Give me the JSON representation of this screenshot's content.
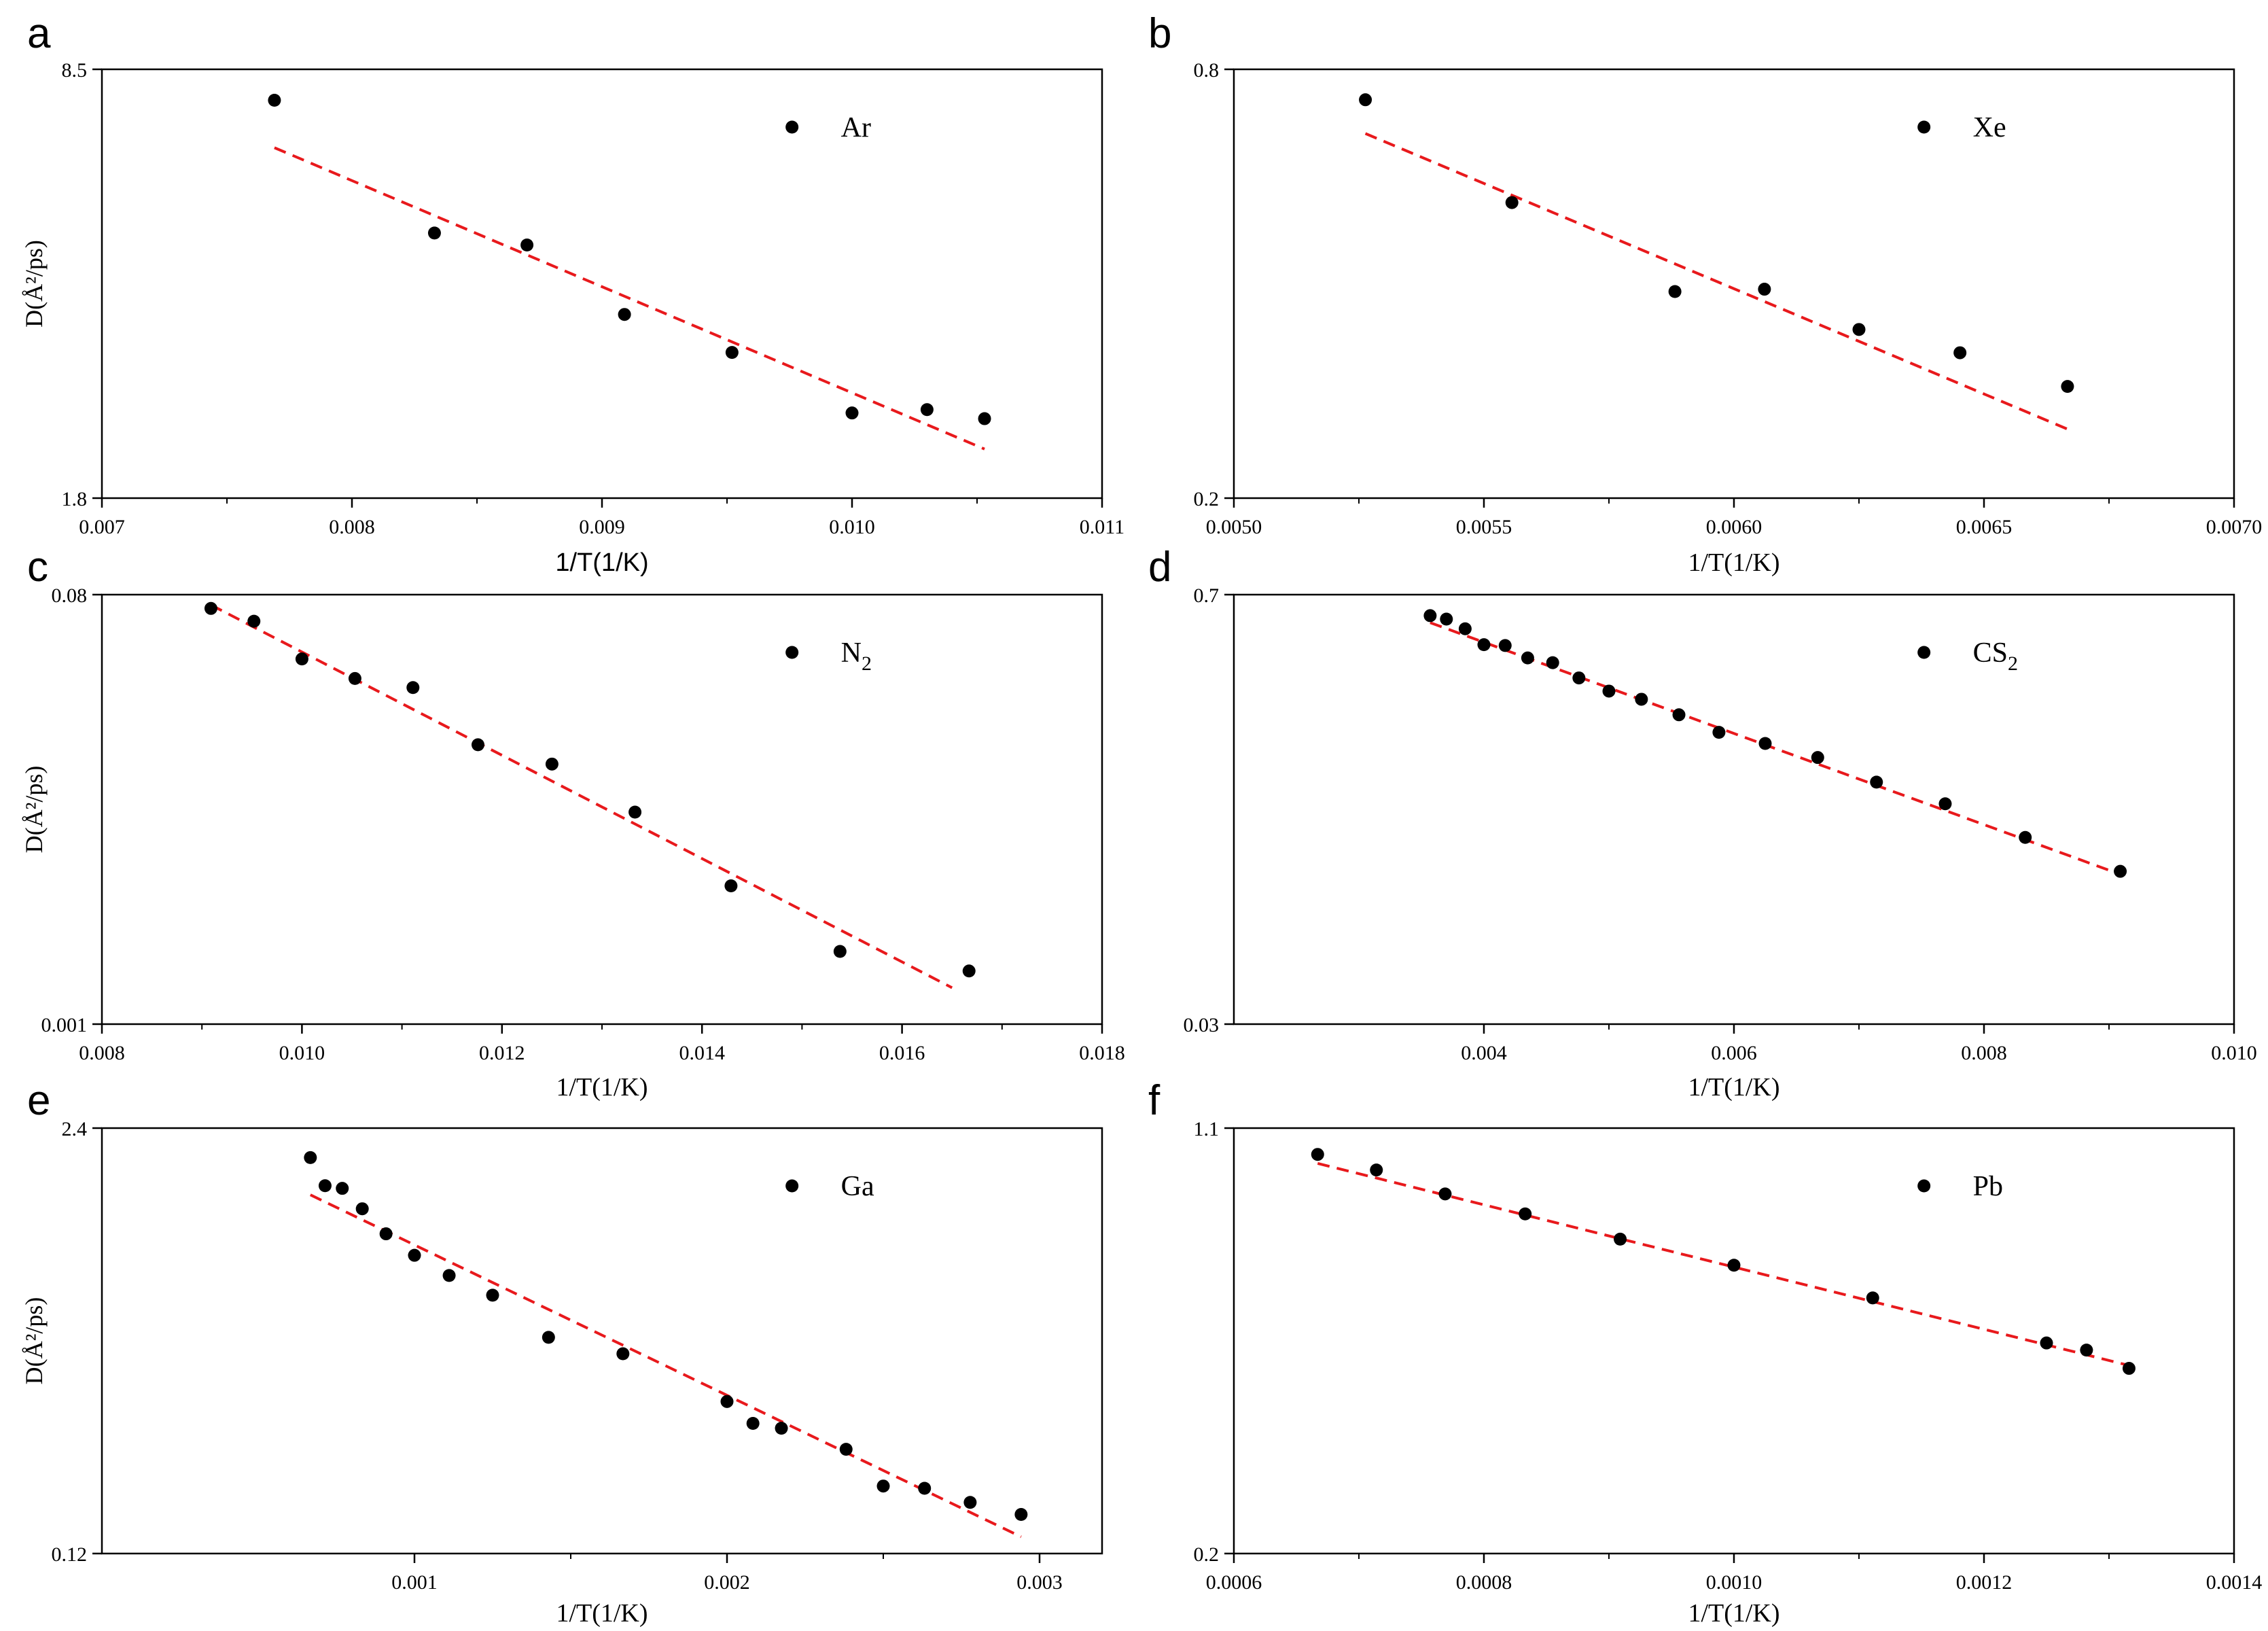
{
  "chart_data": [
    {
      "panel": "a",
      "type": "scatter",
      "yscale": "log",
      "series": [
        {
          "name": "Ar",
          "x": [
            0.00769,
            0.00833,
            0.0087,
            0.00909,
            0.00952,
            0.01,
            0.0103,
            0.01053
          ],
          "y": [
            7.6,
            4.7,
            4.5,
            3.5,
            3.05,
            2.45,
            2.48,
            2.4
          ]
        }
      ],
      "fit": {
        "x": [
          0.00769,
          0.01053
        ],
        "y": [
          6.4,
          2.15
        ]
      },
      "xlim": [
        0.007,
        0.011
      ],
      "ylim": [
        1.8,
        8.5
      ],
      "xticks": [
        "0.007",
        "0.008",
        "0.009",
        "0.010",
        "0.011"
      ],
      "xtick_values": [
        0.007,
        0.008,
        0.009,
        0.01,
        0.011
      ],
      "yticks": [
        "8.5",
        "1.8"
      ],
      "ytick_values": [
        8.5,
        1.8
      ],
      "xlabel": "1/T(1/K)",
      "ylabel": "D(Å²/ps)",
      "legend": "Ar"
    },
    {
      "panel": "b",
      "type": "scatter",
      "yscale": "log",
      "series": [
        {
          "name": "Xe",
          "x": [
            0.005263,
            0.005556,
            0.005882,
            0.006061,
            0.00625,
            0.006452,
            0.006667
          ],
          "y": [
            0.725,
            0.52,
            0.39,
            0.393,
            0.345,
            0.32,
            0.287
          ]
        }
      ],
      "fit": {
        "x": [
          0.005263,
          0.006667
        ],
        "y": [
          0.65,
          0.25
        ]
      },
      "xlim": [
        0.005,
        0.007
      ],
      "ylim": [
        0.2,
        0.8
      ],
      "xticks": [
        "0.0050",
        "0.0055",
        "0.0060",
        "0.0065",
        "0.0070"
      ],
      "xtick_values": [
        0.005,
        0.0055,
        0.006,
        0.0065,
        0.007
      ],
      "yticks": [
        "0.8",
        "0.2"
      ],
      "ytick_values": [
        0.8,
        0.2
      ],
      "xlabel": "1/T(1/K)",
      "ylabel": "",
      "legend": "Xe"
    },
    {
      "panel": "c",
      "type": "scatter",
      "yscale": "log",
      "series": [
        {
          "name": "N2",
          "x": [
            0.00909,
            0.00952,
            0.01,
            0.01053,
            0.01111,
            0.01176,
            0.0125,
            0.01333,
            0.01429,
            0.01538,
            0.01667
          ],
          "y": [
            0.0695,
            0.061,
            0.0415,
            0.034,
            0.031,
            0.0173,
            0.0142,
            0.0087,
            0.0041,
            0.0021,
            0.00172
          ]
        }
      ],
      "fit": {
        "x": [
          0.00909,
          0.0165
        ],
        "y": [
          0.072,
          0.00145
        ]
      },
      "xlim": [
        0.008,
        0.018
      ],
      "ylim": [
        0.001,
        0.08
      ],
      "xticks": [
        "0.008",
        "0.010",
        "0.012",
        "0.014",
        "0.016",
        "0.018"
      ],
      "xtick_values": [
        0.008,
        0.01,
        0.012,
        0.014,
        0.016,
        0.018
      ],
      "yticks": [
        "0.08",
        "0.001"
      ],
      "ytick_values": [
        0.08,
        0.001
      ],
      "xlabel": "1/T(1/K)",
      "ylabel": "D(Å²/ps)",
      "legend": "N2",
      "legend_sub": "2"
    },
    {
      "panel": "d",
      "type": "scatter",
      "yscale": "log",
      "series": [
        {
          "name": "CS2",
          "x": [
            0.00357,
            0.0037,
            0.00385,
            0.004,
            0.00417,
            0.00435,
            0.00455,
            0.00476,
            0.005,
            0.00526,
            0.00556,
            0.00588,
            0.00625,
            0.00667,
            0.00714,
            0.00769,
            0.00833,
            0.00909
          ],
          "y": [
            0.6,
            0.585,
            0.545,
            0.485,
            0.482,
            0.44,
            0.425,
            0.38,
            0.345,
            0.325,
            0.29,
            0.255,
            0.235,
            0.212,
            0.177,
            0.151,
            0.118,
            0.092
          ]
        }
      ],
      "fit": {
        "x": [
          0.00357,
          0.00909
        ],
        "y": [
          0.57,
          0.09
        ]
      },
      "xlim": [
        0.002,
        0.01
      ],
      "ylim": [
        0.03,
        0.7
      ],
      "xticks": [
        "0.004",
        "0.006",
        "0.008",
        "0.010"
      ],
      "xtick_values": [
        0.004,
        0.006,
        0.008,
        0.01
      ],
      "yticks": [
        "0.7",
        "0.03"
      ],
      "ytick_values": [
        0.7,
        0.03
      ],
      "xlabel": "1/T(1/K)",
      "ylabel": "",
      "legend": "CS2",
      "legend_sub": "2"
    },
    {
      "panel": "e",
      "type": "scatter",
      "yscale": "log",
      "series": [
        {
          "name": "Ga",
          "x": [
            0.000667,
            0.000714,
            0.000769,
            0.000833,
            0.000909,
            0.001,
            0.001111,
            0.00125,
            0.001429,
            0.001667,
            0.002,
            0.002083,
            0.002174,
            0.002381,
            0.0025,
            0.002632,
            0.002778,
            0.002941
          ],
          "y": [
            1.95,
            1.6,
            1.57,
            1.36,
            1.14,
            0.98,
            0.85,
            0.74,
            0.55,
            0.49,
            0.35,
            0.3,
            0.29,
            0.25,
            0.193,
            0.19,
            0.172,
            0.158
          ]
        }
      ],
      "fit": {
        "x": [
          0.000667,
          0.002941
        ],
        "y": [
          1.5,
          0.135
        ]
      },
      "xlim": [
        0.0,
        0.0032
      ],
      "ylim": [
        0.12,
        2.4
      ],
      "xticks": [
        "0.001",
        "0.002",
        "0.003"
      ],
      "xtick_values": [
        0.001,
        0.002,
        0.003
      ],
      "yticks": [
        "2.4",
        "0.12"
      ],
      "ytick_values": [
        2.4,
        0.12
      ],
      "xlabel": "1/T(1/K)",
      "ylabel": "D(Å²/ps)",
      "legend": "Ga"
    },
    {
      "panel": "f",
      "type": "scatter",
      "yscale": "log",
      "series": [
        {
          "name": "Pb",
          "x": [
            0.000667,
            0.000714,
            0.000769,
            0.000833,
            0.000909,
            0.001,
            0.001111,
            0.00125,
            0.001282,
            0.001316
          ],
          "y": [
            0.99,
            0.93,
            0.845,
            0.78,
            0.705,
            0.635,
            0.557,
            0.465,
            0.452,
            0.42
          ]
        }
      ],
      "fit": {
        "x": [
          0.000667,
          0.001316
        ],
        "y": [
          0.955,
          0.425
        ]
      },
      "xlim": [
        0.0006,
        0.0014
      ],
      "ylim": [
        0.2,
        1.1
      ],
      "xticks": [
        "0.0006",
        "0.0008",
        "0.0010",
        "0.0012",
        "0.0014"
      ],
      "xtick_values": [
        0.0006,
        0.0008,
        0.001,
        0.0012,
        0.0014
      ],
      "yticks": [
        "1.1",
        "0.2"
      ],
      "ytick_values": [
        1.1,
        0.2
      ],
      "xlabel": "1/T(1/K)",
      "ylabel": "",
      "legend": "Pb"
    }
  ],
  "colors": {
    "points": "#000000",
    "fit": "#e8191c",
    "axes": "#000000"
  }
}
